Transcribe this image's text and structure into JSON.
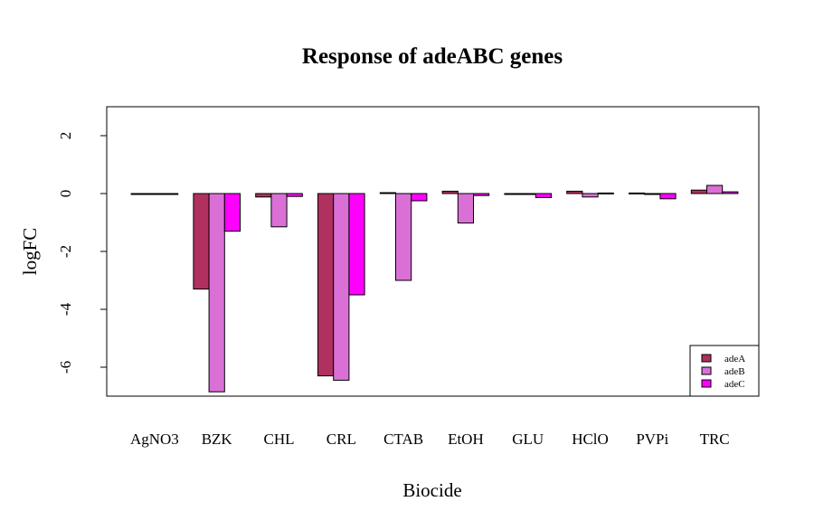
{
  "chart_data": {
    "type": "bar",
    "title": "Response of adeABC genes",
    "xlabel": "Biocide",
    "ylabel": "logFC",
    "categories": [
      "AgNO3",
      "BZK",
      "CHL",
      "CRL",
      "CTAB",
      "EtOH",
      "GLU",
      "HClO",
      "PVPi",
      "TRC"
    ],
    "series": [
      {
        "name": "adeA",
        "color": "#b03060",
        "values": [
          0.0,
          -3.3,
          -0.12,
          -6.3,
          0.03,
          0.08,
          0.0,
          0.08,
          0.02,
          0.12
        ]
      },
      {
        "name": "adeB",
        "color": "#da70d6",
        "values": [
          0.0,
          -6.85,
          -1.15,
          -6.45,
          -3.0,
          -1.02,
          -0.03,
          -0.12,
          0.0,
          0.28
        ]
      },
      {
        "name": "adeC",
        "color": "#ff00ff",
        "values": [
          0.0,
          -1.3,
          -0.1,
          -3.5,
          -0.25,
          -0.07,
          -0.14,
          0.02,
          -0.18,
          0.06
        ]
      }
    ],
    "ylim": [
      -7,
      3
    ],
    "yticks": [
      -6,
      -4,
      -2,
      0,
      2
    ],
    "grid": false,
    "legend_position": "bottom-right"
  }
}
